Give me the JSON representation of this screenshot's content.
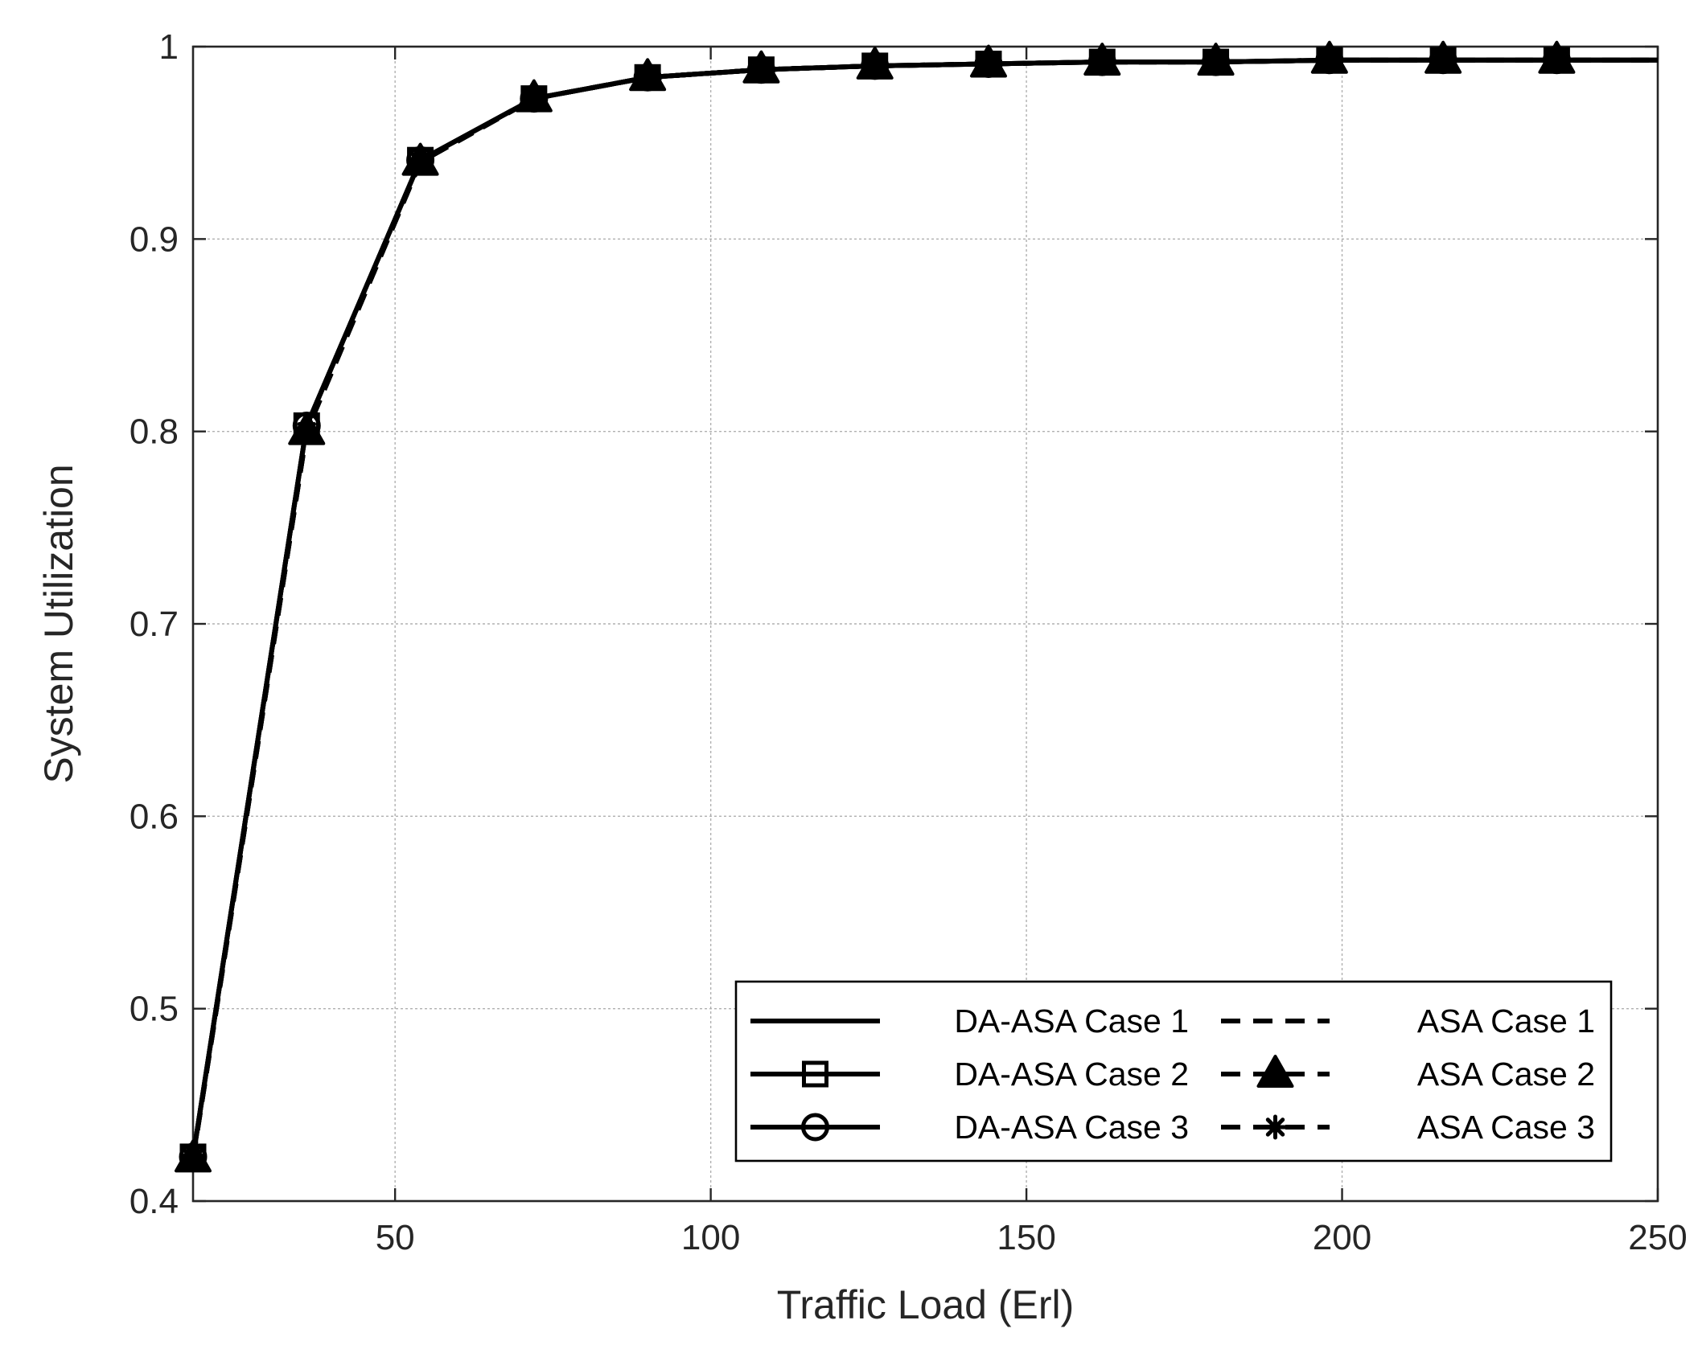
{
  "chart_data": {
    "type": "line",
    "xlabel": "Traffic Load (Erl)",
    "ylabel": "System Utilization",
    "xlim": [
      18,
      250
    ],
    "ylim": [
      0.4,
      1.0
    ],
    "xticks": [
      50,
      100,
      150,
      200,
      250
    ],
    "xtick_labels": [
      "50",
      "100",
      "150",
      "200",
      "250"
    ],
    "yticks": [
      0.4,
      0.5,
      0.6,
      0.7,
      0.8,
      0.9,
      1.0
    ],
    "ytick_labels": [
      "0.4",
      "0.5",
      "0.6",
      "0.7",
      "0.8",
      "0.9",
      "1"
    ],
    "grid": true,
    "legend_position": "bottom-right",
    "legend_columns": 2,
    "x": [
      18,
      36,
      54,
      72,
      90,
      108,
      126,
      144,
      162,
      180,
      198,
      216,
      234,
      252
    ],
    "series": [
      {
        "name": "DA-ASA Case 1",
        "line": "solid",
        "marker": "none",
        "color": "#000000",
        "values": [
          0.423,
          0.803,
          0.941,
          0.973,
          0.984,
          0.988,
          0.99,
          0.991,
          0.992,
          0.992,
          0.993,
          0.993,
          0.993,
          0.993
        ]
      },
      {
        "name": "DA-ASA Case 2",
        "line": "solid",
        "marker": "square",
        "color": "#000000",
        "values": [
          0.423,
          0.803,
          0.941,
          0.973,
          0.984,
          0.988,
          0.99,
          0.991,
          0.992,
          0.992,
          0.993,
          0.993,
          0.993,
          0.993
        ]
      },
      {
        "name": "DA-ASA Case 3",
        "line": "solid",
        "marker": "circle",
        "color": "#000000",
        "values": [
          0.423,
          0.803,
          0.941,
          0.973,
          0.984,
          0.988,
          0.99,
          0.991,
          0.992,
          0.992,
          0.993,
          0.993,
          0.993,
          0.993
        ]
      },
      {
        "name": "ASA Case 1",
        "line": "dashed",
        "marker": "none",
        "color": "#000000",
        "values": [
          0.422,
          0.8,
          0.94,
          0.973,
          0.984,
          0.988,
          0.99,
          0.991,
          0.992,
          0.992,
          0.993,
          0.993,
          0.993,
          0.993
        ]
      },
      {
        "name": "ASA Case 2",
        "line": "dashed",
        "marker": "triangle",
        "color": "#000000",
        "values": [
          0.422,
          0.8,
          0.94,
          0.973,
          0.984,
          0.988,
          0.99,
          0.991,
          0.992,
          0.992,
          0.993,
          0.993,
          0.993,
          0.993
        ]
      },
      {
        "name": "ASA Case 3",
        "line": "dashed",
        "marker": "asterisk",
        "color": "#000000",
        "values": [
          0.422,
          0.8,
          0.94,
          0.973,
          0.984,
          0.988,
          0.99,
          0.991,
          0.992,
          0.992,
          0.993,
          0.993,
          0.993,
          0.993
        ]
      }
    ],
    "legend_order": [
      0,
      3,
      1,
      4,
      2,
      5
    ]
  }
}
